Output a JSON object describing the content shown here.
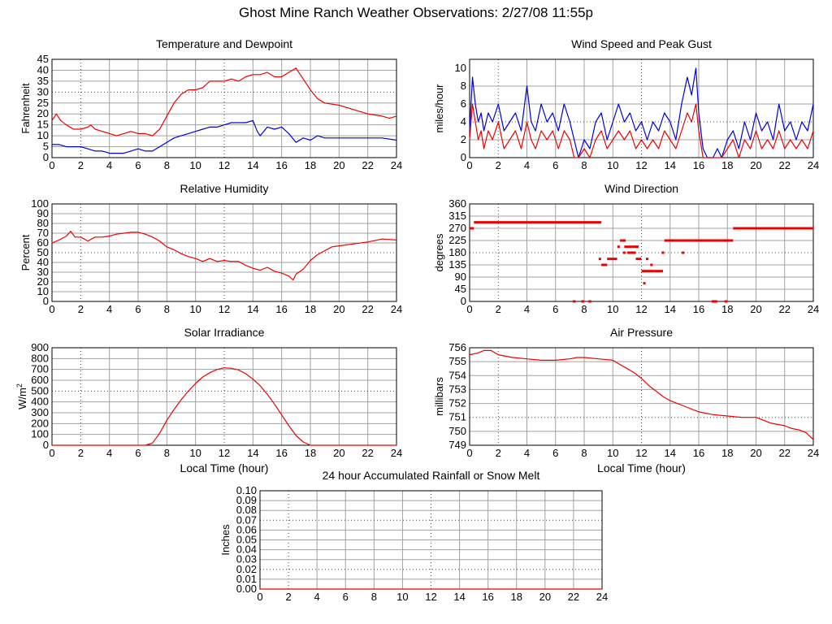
{
  "page": {
    "title": "Ghost Mine Ranch Weather Observations: 2/27/08 11:55p"
  },
  "colors": {
    "red": "#ee0000",
    "blue": "#0000dd",
    "grid": "#a0a0a0"
  },
  "chart_data": [
    {
      "id": "temp",
      "type": "line",
      "title": "Temperature and Dewpoint",
      "xlabel": "",
      "ylabel": "Fahrenheit",
      "xlim": [
        0,
        24
      ],
      "ylim": [
        0,
        45
      ],
      "x_ticks": [
        0,
        2,
        4,
        6,
        8,
        10,
        12,
        14,
        16,
        18,
        20,
        22,
        24
      ],
      "y_ticks": [
        0,
        5,
        10,
        15,
        20,
        25,
        30,
        35,
        40,
        45
      ],
      "y_tick_labels": [
        "0",
        "5",
        "10",
        "15",
        "20",
        "25",
        "30",
        "35",
        "40",
        "45"
      ],
      "grid": true,
      "series": [
        {
          "color": "red",
          "x": [
            0,
            0.3,
            0.6,
            1,
            1.5,
            2,
            2.5,
            2.7,
            3,
            3.5,
            4,
            4.5,
            5,
            5.5,
            6,
            6.5,
            7,
            7.5,
            8,
            8.5,
            9,
            9.5,
            10,
            10.5,
            11,
            11.5,
            12,
            12.5,
            13,
            13.5,
            14,
            14.5,
            15,
            15.5,
            16,
            16.5,
            17,
            17.5,
            18,
            18.5,
            19,
            20,
            21,
            22,
            23,
            23.5,
            24
          ],
          "y": [
            17,
            20,
            17,
            15,
            13,
            13,
            14,
            15,
            13,
            12,
            11,
            10,
            11,
            12,
            11,
            11,
            10,
            13,
            19,
            25,
            29,
            31,
            31,
            32,
            35,
            35,
            35,
            36,
            35,
            37,
            38,
            38,
            39,
            37,
            37,
            39,
            41,
            36,
            31,
            27,
            25,
            24,
            22,
            20,
            19,
            18,
            19
          ]
        },
        {
          "color": "blue",
          "x": [
            0,
            0.5,
            1,
            1.5,
            2,
            2.5,
            3,
            3.5,
            4,
            4.5,
            5,
            5.5,
            6,
            6.5,
            7,
            7.5,
            8,
            8.5,
            9,
            9.5,
            10,
            10.5,
            11,
            11.5,
            12,
            12.5,
            13,
            13.5,
            14,
            14.3,
            14.5,
            15,
            15.5,
            16,
            16.5,
            17,
            17.5,
            18,
            18.5,
            19,
            20,
            21,
            22,
            23,
            24
          ],
          "y": [
            6,
            6,
            5,
            5,
            5,
            4,
            3,
            3,
            2,
            2,
            2,
            3,
            4,
            3,
            3,
            5,
            7,
            9,
            10,
            11,
            12,
            13,
            14,
            14,
            15,
            16,
            16,
            16,
            17,
            12,
            10,
            14,
            13,
            14,
            11,
            7,
            9,
            8,
            10,
            9,
            9,
            9,
            9,
            9,
            8
          ]
        }
      ]
    },
    {
      "id": "wind",
      "type": "line",
      "title": "Wind Speed and Peak Gust",
      "xlabel": "",
      "ylabel": "miles/hour",
      "xlim": [
        0,
        24
      ],
      "ylim": [
        0,
        11
      ],
      "x_ticks": [
        0,
        2,
        4,
        6,
        8,
        10,
        12,
        14,
        16,
        18,
        20,
        22,
        24
      ],
      "y_ticks": [
        0,
        2,
        4,
        6,
        8,
        10
      ],
      "y_tick_labels": [
        "0",
        "2",
        "4",
        "6",
        "8",
        "10"
      ],
      "grid": true,
      "series": [
        {
          "color": "blue",
          "x": [
            0,
            0.2,
            0.4,
            0.6,
            0.8,
            1,
            1.3,
            1.6,
            2,
            2.4,
            2.8,
            3.2,
            3.6,
            4,
            4.3,
            4.6,
            5,
            5.4,
            5.8,
            6.2,
            6.6,
            7,
            7.3,
            7.6,
            8,
            8.4,
            8.8,
            9.2,
            9.6,
            10,
            10.4,
            10.8,
            11.2,
            11.6,
            12,
            12.4,
            12.8,
            13.2,
            13.6,
            14,
            14.4,
            14.8,
            15.2,
            15.5,
            15.8,
            16,
            16.3,
            16.6,
            17,
            17.3,
            17.6,
            18,
            18.4,
            18.8,
            19.2,
            19.6,
            20,
            20.4,
            20.8,
            21.2,
            21.6,
            22,
            22.4,
            22.8,
            23.2,
            23.6,
            24
          ],
          "y": [
            3,
            9,
            6,
            4,
            5,
            3,
            5,
            4,
            6,
            3,
            4,
            5,
            3,
            8,
            4,
            3,
            6,
            4,
            5,
            3,
            6,
            4,
            2,
            0,
            2,
            1,
            4,
            5,
            2,
            4,
            6,
            4,
            5,
            3,
            4,
            2,
            4,
            3,
            5,
            4,
            2,
            6,
            9,
            7,
            10,
            5,
            1,
            0,
            0,
            1,
            0,
            2,
            3,
            1,
            4,
            2,
            5,
            3,
            4,
            2,
            6,
            3,
            4,
            2,
            4,
            3,
            6
          ]
        },
        {
          "color": "red",
          "x": [
            0,
            0.2,
            0.4,
            0.6,
            0.8,
            1,
            1.3,
            1.6,
            2,
            2.4,
            2.8,
            3.2,
            3.6,
            4,
            4.3,
            4.6,
            5,
            5.4,
            5.8,
            6.2,
            6.6,
            7,
            7.3,
            7.6,
            8,
            8.4,
            8.8,
            9.2,
            9.6,
            10,
            10.4,
            10.8,
            11.2,
            11.6,
            12,
            12.4,
            12.8,
            13.2,
            13.6,
            14,
            14.4,
            14.8,
            15.2,
            15.5,
            15.8,
            16,
            16.3,
            16.6,
            17,
            17.3,
            17.6,
            18,
            18.4,
            18.8,
            19.2,
            19.6,
            20,
            20.4,
            20.8,
            21.2,
            21.6,
            22,
            22.4,
            22.8,
            23.2,
            23.6,
            24
          ],
          "y": [
            2,
            6,
            4,
            2,
            3,
            1,
            3,
            2,
            4,
            1,
            2,
            3,
            1,
            4,
            2,
            1,
            3,
            2,
            3,
            1,
            3,
            2,
            0,
            0,
            1,
            0,
            2,
            3,
            1,
            2,
            3,
            2,
            3,
            1,
            2,
            1,
            2,
            1,
            3,
            2,
            1,
            3,
            5,
            4,
            6,
            3,
            0,
            0,
            0,
            0,
            0,
            1,
            2,
            0,
            2,
            1,
            3,
            1,
            2,
            1,
            3,
            1,
            2,
            1,
            2,
            1,
            3
          ]
        }
      ]
    },
    {
      "id": "humidity",
      "type": "line",
      "title": "Relative Humidity",
      "xlabel": "",
      "ylabel": "Percent",
      "xlim": [
        0,
        24
      ],
      "ylim": [
        0,
        100
      ],
      "x_ticks": [
        0,
        2,
        4,
        6,
        8,
        10,
        12,
        14,
        16,
        18,
        20,
        22,
        24
      ],
      "y_ticks": [
        0,
        10,
        20,
        30,
        40,
        50,
        60,
        70,
        80,
        90,
        100
      ],
      "y_tick_labels": [
        "0",
        "10",
        "20",
        "30",
        "40",
        "50",
        "60",
        "70",
        "80",
        "90",
        "100"
      ],
      "grid": true,
      "series": [
        {
          "color": "red",
          "x": [
            0,
            0.5,
            1,
            1.3,
            1.6,
            2,
            2.5,
            3,
            3.5,
            4,
            4.5,
            5,
            5.5,
            6,
            6.5,
            7,
            7.5,
            8,
            8.5,
            9,
            9.5,
            10,
            10.5,
            11,
            11.5,
            12,
            12.5,
            13,
            13.5,
            14,
            14.5,
            15,
            15.5,
            16,
            16.5,
            16.8,
            17,
            17.5,
            18,
            18.5,
            19,
            19.5,
            20,
            21,
            22,
            23,
            24
          ],
          "y": [
            60,
            63,
            67,
            72,
            66,
            66,
            62,
            66,
            66,
            67,
            69,
            70,
            71,
            71,
            69,
            66,
            62,
            56,
            53,
            49,
            46,
            44,
            41,
            44,
            41,
            42,
            41,
            41,
            37,
            34,
            32,
            35,
            31,
            29,
            26,
            22,
            28,
            33,
            42,
            48,
            52,
            56,
            57,
            59,
            61,
            64,
            63
          ]
        }
      ]
    },
    {
      "id": "direction",
      "type": "scatter",
      "title": "Wind Direction",
      "xlabel": "",
      "ylabel": "degrees",
      "xlim": [
        0,
        24
      ],
      "ylim": [
        0,
        360
      ],
      "x_ticks": [
        0,
        2,
        4,
        6,
        8,
        10,
        12,
        14,
        16,
        18,
        20,
        22,
        24
      ],
      "y_ticks": [
        0,
        45,
        90,
        135,
        180,
        225,
        270,
        315,
        360
      ],
      "y_tick_labels": [
        "0",
        "45",
        "90",
        "135",
        "180",
        "225",
        "270",
        "315",
        "360"
      ],
      "grid": true,
      "series": [
        {
          "color": "red",
          "segments": [
            [
              0,
              0.3,
              270
            ],
            [
              0.3,
              9.2,
              292
            ],
            [
              9.2,
              9.6,
              135
            ],
            [
              9.6,
              10.3,
              157
            ],
            [
              10.5,
              10.9,
              225
            ],
            [
              10.8,
              11.3,
              202
            ],
            [
              11.0,
              11.6,
              180
            ],
            [
              11.3,
              11.8,
              202
            ],
            [
              11.6,
              12.0,
              157
            ],
            [
              12.0,
              12.9,
              112
            ],
            [
              12.9,
              13.5,
              112
            ],
            [
              13.6,
              18.4,
              225
            ],
            [
              18.4,
              24,
              270
            ],
            [
              7.2,
              7.4,
              0
            ],
            [
              7.8,
              8.0,
              0
            ],
            [
              8.3,
              8.5,
              0
            ],
            [
              16.9,
              17.3,
              0
            ],
            [
              17.8,
              18.0,
              0
            ]
          ],
          "points": [
            [
              9.1,
              157
            ],
            [
              10.4,
              202
            ],
            [
              10.8,
              180
            ],
            [
              12.2,
              67
            ],
            [
              12.7,
              135
            ],
            [
              13.5,
              180
            ],
            [
              14.9,
              180
            ],
            [
              12.4,
              157
            ]
          ]
        }
      ]
    },
    {
      "id": "solar",
      "type": "line",
      "title": "Solar Irradiance",
      "xlabel": "Local Time (hour)",
      "ylabel": "W/m",
      "ylabel_sup": "2",
      "xlim": [
        0,
        24
      ],
      "ylim": [
        0,
        900
      ],
      "x_ticks": [
        0,
        2,
        4,
        6,
        8,
        10,
        12,
        14,
        16,
        18,
        20,
        22,
        24
      ],
      "y_ticks": [
        0,
        100,
        200,
        300,
        400,
        500,
        600,
        700,
        800,
        900
      ],
      "y_tick_labels": [
        "0",
        "100",
        "200",
        "300",
        "400",
        "500",
        "600",
        "700",
        "800",
        "900"
      ],
      "grid": true,
      "series": [
        {
          "color": "red",
          "x": [
            0,
            6.5,
            7,
            7.5,
            8,
            8.5,
            9,
            9.5,
            10,
            10.5,
            11,
            11.5,
            12,
            12.5,
            13,
            13.5,
            14,
            14.5,
            15,
            15.5,
            16,
            16.5,
            17,
            17.5,
            18,
            24
          ],
          "y": [
            0,
            0,
            20,
            110,
            230,
            330,
            420,
            500,
            570,
            630,
            670,
            700,
            715,
            710,
            695,
            660,
            610,
            550,
            470,
            380,
            280,
            180,
            90,
            30,
            0,
            0
          ]
        }
      ]
    },
    {
      "id": "pressure",
      "type": "line",
      "title": "Air Pressure",
      "xlabel": "Local Time (hour)",
      "ylabel": "millibars",
      "xlim": [
        0,
        24
      ],
      "ylim": [
        749,
        756
      ],
      "x_ticks": [
        0,
        2,
        4,
        6,
        8,
        10,
        12,
        14,
        16,
        18,
        20,
        22,
        24
      ],
      "y_ticks": [
        749,
        750,
        751,
        752,
        753,
        754,
        755,
        756
      ],
      "y_tick_labels": [
        "749",
        "750",
        "751",
        "752",
        "753",
        "754",
        "755",
        "756"
      ],
      "grid": true,
      "series": [
        {
          "color": "red",
          "x": [
            0,
            0.5,
            1,
            1.5,
            2,
            3,
            4,
            5,
            6,
            7,
            7.5,
            8,
            9,
            10,
            10.5,
            11,
            11.5,
            12,
            12.5,
            13,
            13.5,
            14,
            15,
            16,
            17,
            18,
            19,
            20,
            20.5,
            21,
            22,
            22.5,
            23,
            23.5,
            24
          ],
          "y": [
            755.5,
            755.6,
            755.8,
            755.8,
            755.5,
            755.3,
            755.2,
            755.1,
            755.1,
            755.2,
            755.3,
            755.3,
            755.2,
            755.1,
            754.8,
            754.5,
            754.2,
            753.8,
            753.3,
            752.9,
            752.5,
            752.2,
            751.8,
            751.4,
            751.2,
            751.1,
            751.0,
            751.0,
            750.8,
            750.6,
            750.4,
            750.2,
            750.1,
            749.9,
            749.4
          ]
        }
      ]
    },
    {
      "id": "rain",
      "type": "line",
      "title": "24 hour Accumulated Rainfall or Snow Melt",
      "xlabel": "",
      "ylabel": "Inches",
      "xlim": [
        0,
        24
      ],
      "ylim": [
        0,
        0.1
      ],
      "x_ticks": [
        0,
        2,
        4,
        6,
        8,
        10,
        12,
        14,
        16,
        18,
        20,
        22,
        24
      ],
      "y_ticks": [
        0,
        0.01,
        0.02,
        0.03,
        0.04,
        0.05,
        0.06,
        0.07,
        0.08,
        0.09,
        0.1
      ],
      "y_tick_labels": [
        "0.00",
        "0.01",
        "0.02",
        "0.03",
        "0.04",
        "0.05",
        "0.06",
        "0.07",
        "0.08",
        "0.09",
        "0.10"
      ],
      "grid": true,
      "series": [
        {
          "color": "red",
          "x": [
            0,
            24
          ],
          "y": [
            0,
            0
          ]
        }
      ]
    }
  ]
}
